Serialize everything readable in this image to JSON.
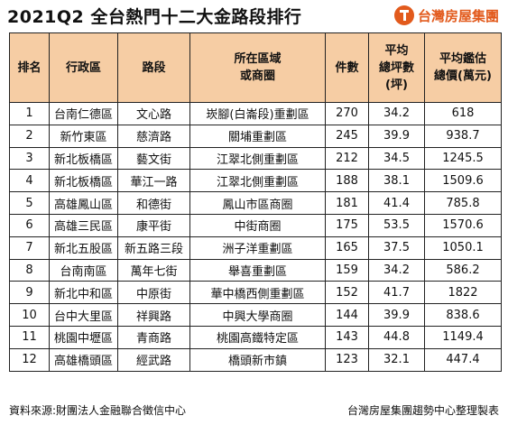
{
  "title": "2021Q2 全台熱門十二大金路段排行",
  "brand": {
    "name": "台灣房屋集團",
    "icon": "taiwan-realty-logo-icon",
    "color": "#e25a1c"
  },
  "table": {
    "header_color": "#f6cda4",
    "headers": {
      "rank": "排名",
      "district": "行政區",
      "road": "路段",
      "area_line1": "所在區域",
      "area_line2": "或商圈",
      "count": "件數",
      "price_line1": "平均",
      "price_line2": "總坪數",
      "price_line3": "(坪)",
      "value_line1": "平均鑑估",
      "value_line2": "總價(萬元)"
    },
    "rows": [
      {
        "rank": "1",
        "district": "台南仁德區",
        "road": "文心路",
        "area": "崁腳(白崙段)重劃區",
        "count": "270",
        "ping": "34.2",
        "value": "618"
      },
      {
        "rank": "2",
        "district": "新竹東區",
        "road": "慈濟路",
        "area": "關埔重劃區",
        "count": "245",
        "ping": "39.9",
        "value": "938.7"
      },
      {
        "rank": "3",
        "district": "新北板橋區",
        "road": "藝文街",
        "area": "江翠北側重劃區",
        "count": "212",
        "ping": "34.5",
        "value": "1245.5"
      },
      {
        "rank": "4",
        "district": "新北板橋區",
        "road": "華江一路",
        "area": "江翠北側重劃區",
        "count": "188",
        "ping": "38.1",
        "value": "1509.6"
      },
      {
        "rank": "5",
        "district": "高雄鳳山區",
        "road": "和德街",
        "area": "鳳山市區商圈",
        "count": "181",
        "ping": "41.4",
        "value": "785.8"
      },
      {
        "rank": "6",
        "district": "高雄三民區",
        "road": "康平街",
        "area": "中街商圈",
        "count": "175",
        "ping": "53.5",
        "value": "1570.6"
      },
      {
        "rank": "7",
        "district": "新北五股區",
        "road": "新五路三段",
        "area": "洲子洋重劃區",
        "count": "165",
        "ping": "37.5",
        "value": "1050.1"
      },
      {
        "rank": "8",
        "district": "台南南區",
        "road": "萬年七街",
        "area": "舉喜重劃區",
        "count": "159",
        "ping": "34.2",
        "value": "586.2"
      },
      {
        "rank": "9",
        "district": "新北中和區",
        "road": "中原街",
        "area": "華中橋西側重劃區",
        "count": "152",
        "ping": "41.7",
        "value": "1822"
      },
      {
        "rank": "10",
        "district": "台中大里區",
        "road": "祥興路",
        "area": "中興大學商圈",
        "count": "144",
        "ping": "39.9",
        "value": "838.6"
      },
      {
        "rank": "11",
        "district": "桃園中壢區",
        "road": "青商路",
        "area": "桃園高鐵特定區",
        "count": "143",
        "ping": "44.8",
        "value": "1149.4"
      },
      {
        "rank": "12",
        "district": "高雄橋頭區",
        "road": "經武路",
        "area": "橋頭新市鎮",
        "count": "123",
        "ping": "32.1",
        "value": "447.4"
      }
    ]
  },
  "footer": {
    "source": "資料來源:財團法人金融聯合徵信中心",
    "credit": "台灣房屋集團趨勢中心整理製表"
  }
}
